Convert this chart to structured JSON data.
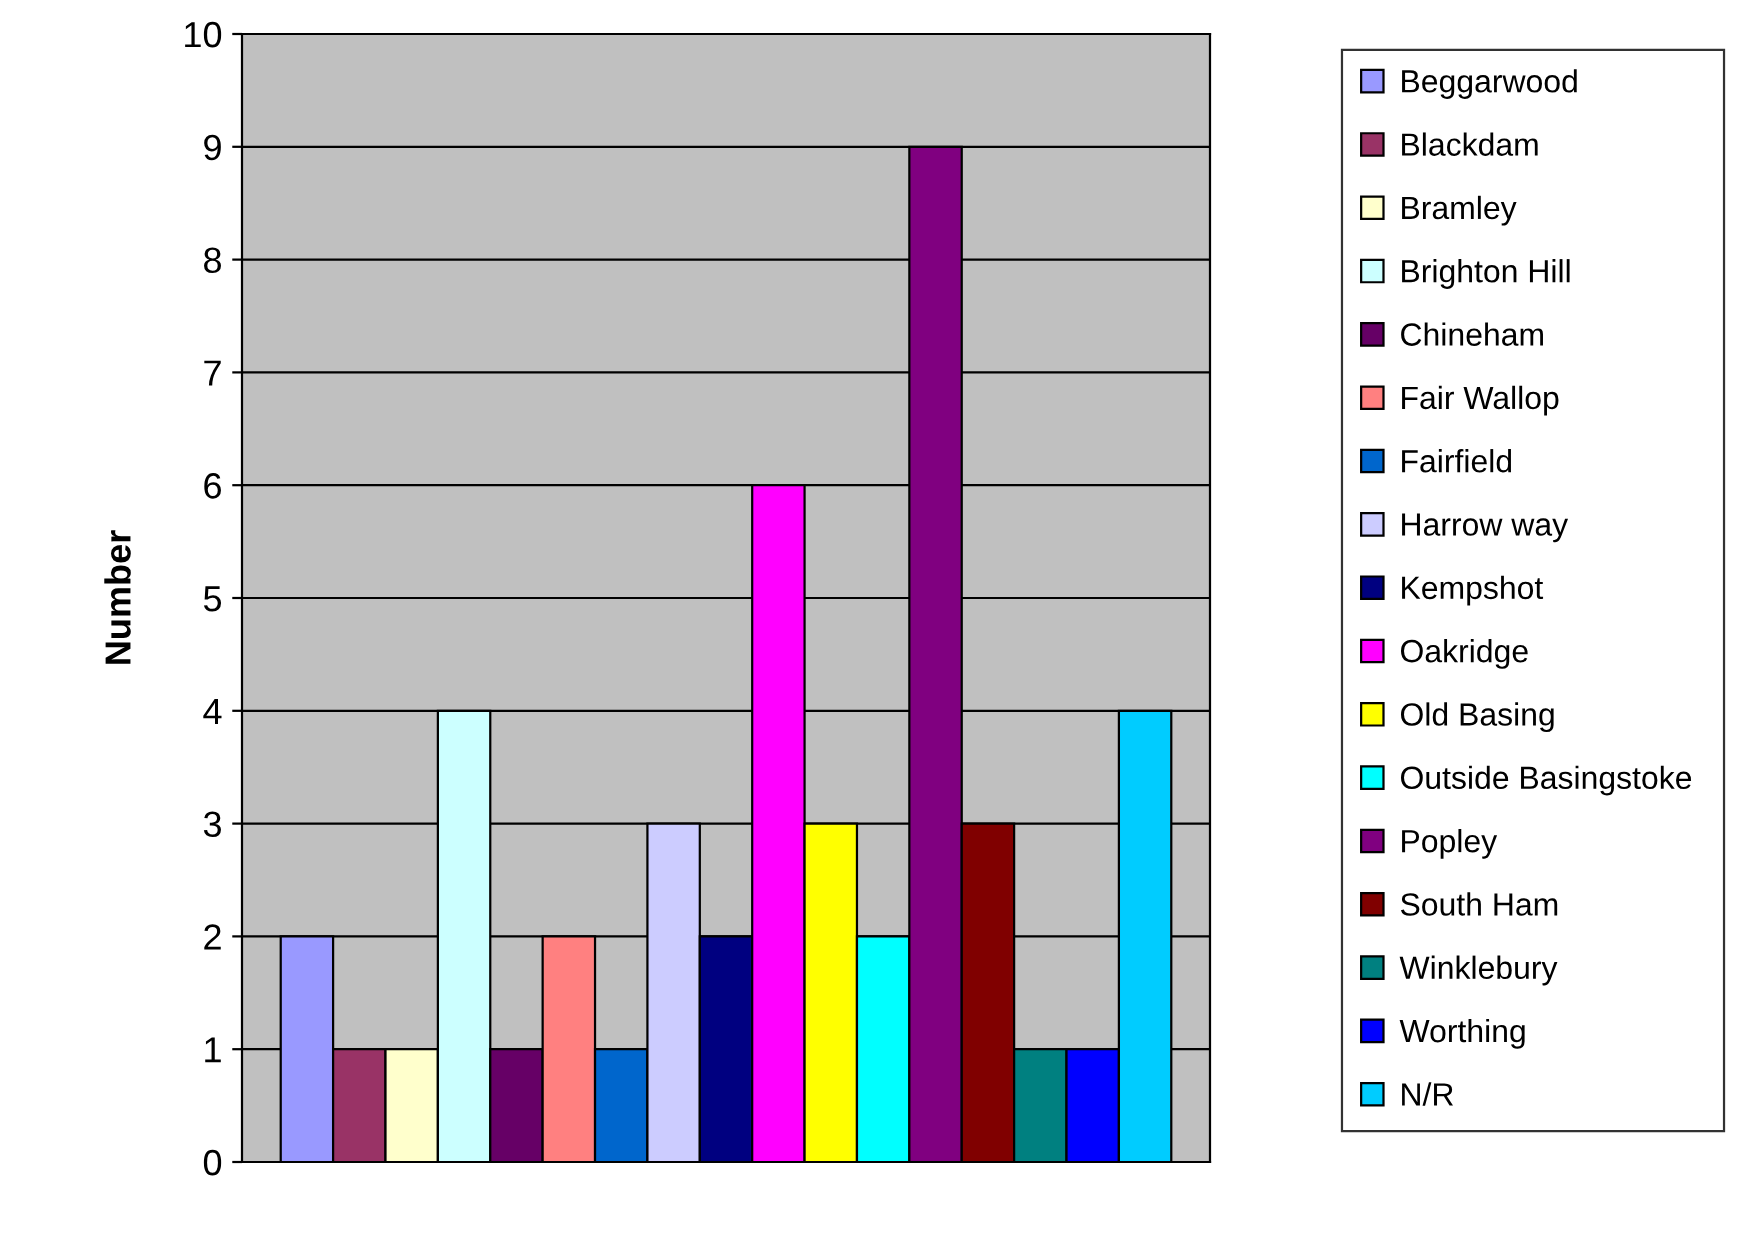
{
  "chart_data": {
    "type": "bar",
    "ylabel": "Number",
    "categories": [
      null
    ],
    "series": [
      {
        "name": "Beggarwood",
        "color": "#9999ff",
        "values": [
          2
        ]
      },
      {
        "name": "Blackdam",
        "color": "#993366",
        "values": [
          1
        ]
      },
      {
        "name": "Bramley",
        "color": "#ffffcc",
        "values": [
          1
        ]
      },
      {
        "name": "Brighton Hill",
        "color": "#ccffff",
        "values": [
          4
        ]
      },
      {
        "name": "Chineham",
        "color": "#660066",
        "values": [
          1
        ]
      },
      {
        "name": "Fair Wallop",
        "color": "#ff8080",
        "values": [
          2
        ]
      },
      {
        "name": "Fairfield",
        "color": "#0066cc",
        "values": [
          1
        ]
      },
      {
        "name": "Harrow way",
        "color": "#ccccff",
        "values": [
          3
        ]
      },
      {
        "name": "Kempshot",
        "color": "#000080",
        "values": [
          2
        ]
      },
      {
        "name": "Oakridge",
        "color": "#ff00ff",
        "values": [
          6
        ]
      },
      {
        "name": "Old Basing",
        "color": "#ffff00",
        "values": [
          3
        ]
      },
      {
        "name": "Outside Basingstoke",
        "color": "#00ffff",
        "values": [
          2
        ]
      },
      {
        "name": "Popley",
        "color": "#800080",
        "values": [
          9
        ]
      },
      {
        "name": "South Ham",
        "color": "#800000",
        "values": [
          3
        ]
      },
      {
        "name": "Winklebury",
        "color": "#008080",
        "values": [
          1
        ]
      },
      {
        "name": "Worthing",
        "color": "#0000ff",
        "values": [
          1
        ]
      },
      {
        "name": "N/R",
        "color": "#00ccff",
        "values": [
          4
        ]
      }
    ],
    "ylim": [
      0,
      10
    ],
    "yticks": [
      0,
      1,
      2,
      3,
      4,
      5,
      6,
      7,
      8,
      9,
      10
    ],
    "grid": "y",
    "legend": "right"
  }
}
